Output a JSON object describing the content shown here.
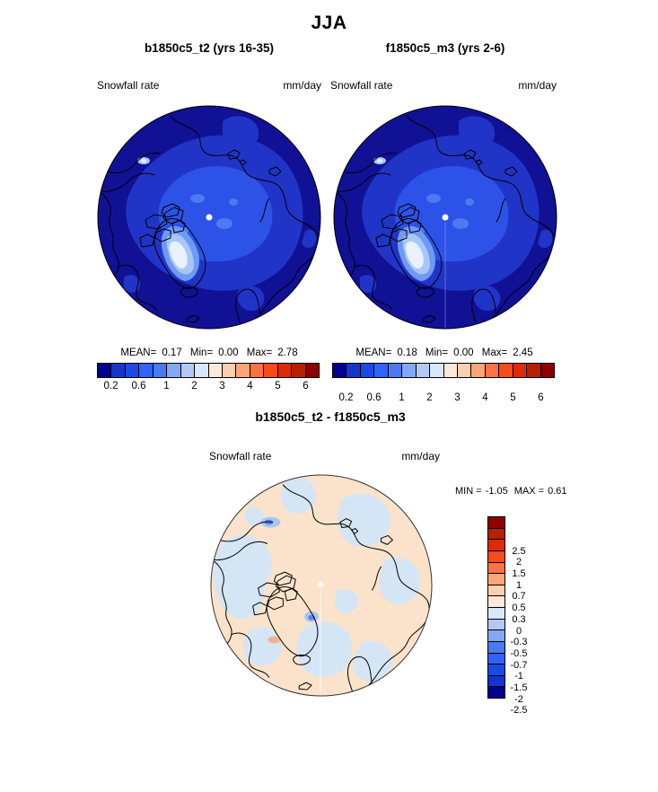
{
  "figure": {
    "title": "JJA"
  },
  "panels": {
    "left": {
      "title": "b1850c5_t2 (yrs 16-35)",
      "field_label": "Snowfall rate",
      "units": "mm/day",
      "stats": {
        "mean_label": "MEAN=",
        "mean": "0.17",
        "min_label": "Min=",
        "min": "0.00",
        "max_label": "Max=",
        "max": "2.78"
      }
    },
    "right": {
      "title": "f1850c5_m3 (yrs 2-6)",
      "field_label": "Snowfall rate",
      "units": "mm/day",
      "stats": {
        "mean_label": "MEAN=",
        "mean": "0.18",
        "min_label": "Min=",
        "min": "0.00",
        "max_label": "Max=",
        "max": "2.45"
      }
    },
    "diff": {
      "title": "b1850c5_t2 - f1850c5_m3",
      "field_label": "Snowfall rate",
      "units": "mm/day",
      "stats": {
        "min_label": "MIN =",
        "min": "-1.05",
        "max_label": "MAX =",
        "max": "0.61"
      }
    }
  },
  "colorbar_top": {
    "orientation": "horizontal",
    "tick_labels": [
      "0.2",
      "0.6",
      "1",
      "2",
      "3",
      "4",
      "5",
      "6"
    ],
    "levels": [
      0.2,
      0.4,
      0.6,
      0.8,
      1,
      1.5,
      2,
      2.5,
      3,
      3.5,
      4,
      4.5,
      5,
      5.5,
      6
    ],
    "colors": [
      "#000090",
      "#1535cc",
      "#1d48e8",
      "#2f63fa",
      "#4b79f2",
      "#85a8f5",
      "#b3c9f5",
      "#d9e7fa",
      "#fde9d9",
      "#fccfb0",
      "#fba579",
      "#fb7342",
      "#f94b1a",
      "#df2a08",
      "#b42000",
      "#8c0000"
    ]
  },
  "colorbar_diff": {
    "orientation": "vertical",
    "tick_labels_top_to_bottom": [
      "2.5",
      "2",
      "1.5",
      "1",
      "0.7",
      "0.5",
      "0.3",
      "0",
      "-0.3",
      "-0.5",
      "-0.7",
      "-1",
      "-1.5",
      "-2",
      "-2.5"
    ],
    "levels": [
      -2.5,
      -2,
      -1.5,
      -1,
      -0.7,
      -0.5,
      -0.3,
      0,
      0.3,
      0.5,
      0.7,
      1,
      1.5,
      2,
      2.5
    ],
    "colors_top_to_bottom": [
      "#8c0000",
      "#b42000",
      "#df2a08",
      "#f94b1a",
      "#fb7342",
      "#fba579",
      "#fccfb0",
      "#fde9d9",
      "#d9e7fa",
      "#b3c9f5",
      "#85a8f5",
      "#4b79f2",
      "#2f63fa",
      "#1d48e8",
      "#1535cc",
      "#000090"
    ]
  },
  "map_colors": {
    "background": "#111195",
    "contour_mid": "#2134c8",
    "contour_high": "#2d52e8",
    "contour_higher": "#4d79f2",
    "greenland_1": "#6f9af4",
    "greenland_2": "#a9c6f8",
    "greenland_core": "#e9f1fd",
    "pole_dot": "#ffffff",
    "coastline": "#000000",
    "diff_base": "#fae3ca",
    "diff_neg_light": "#d4e5f6",
    "diff_neg_mid": "#a9c6f6",
    "diff_neg_strong": "#5b86ee",
    "diff_pos_mid": "#f6b18f"
  },
  "chart_data": [
    {
      "type": "heatmap",
      "projection": "north-polar-stereographic",
      "season": "JJA",
      "title": "b1850c5_t2 (yrs 16-35)",
      "variable": "Snowfall rate",
      "units": "mm/day",
      "stats": {
        "mean": 0.17,
        "min": 0.0,
        "max": 2.78
      },
      "contour_levels": [
        0.2,
        0.4,
        0.6,
        0.8,
        1,
        1.5,
        2,
        2.5,
        3,
        3.5,
        4,
        4.5,
        5,
        5.5,
        6
      ],
      "palette": [
        "#000090",
        "#1535cc",
        "#1d48e8",
        "#2f63fa",
        "#4b79f2",
        "#85a8f5",
        "#b3c9f5",
        "#d9e7fa",
        "#fde9d9",
        "#fccfb0",
        "#fba579",
        "#fb7342",
        "#f94b1a",
        "#df2a08",
        "#b42000",
        "#8c0000"
      ],
      "notable_features": "Values below 0.2 mm/day over most of the domain; 0.4-0.8 mm/day over the central Arctic Ocean; local maximum up to 2.78 mm/day over the Greenland ice sheet"
    },
    {
      "type": "heatmap",
      "projection": "north-polar-stereographic",
      "season": "JJA",
      "title": "f1850c5_m3 (yrs 2-6)",
      "variable": "Snowfall rate",
      "units": "mm/day",
      "stats": {
        "mean": 0.18,
        "min": 0.0,
        "max": 2.45
      },
      "contour_levels": [
        0.2,
        0.4,
        0.6,
        0.8,
        1,
        1.5,
        2,
        2.5,
        3,
        3.5,
        4,
        4.5,
        5,
        5.5,
        6
      ],
      "palette": [
        "#000090",
        "#1535cc",
        "#1d48e8",
        "#2f63fa",
        "#4b79f2",
        "#85a8f5",
        "#b3c9f5",
        "#d9e7fa",
        "#fde9d9",
        "#fccfb0",
        "#fba579",
        "#fb7342",
        "#f94b1a",
        "#df2a08",
        "#b42000",
        "#8c0000"
      ],
      "notable_features": "Pattern nearly identical to b1850c5_t2 with light snowfall over central Arctic and maximum over Greenland"
    },
    {
      "type": "heatmap",
      "projection": "north-polar-stereographic",
      "season": "JJA",
      "title": "b1850c5_t2 - f1850c5_m3",
      "variable": "Snowfall rate difference",
      "units": "mm/day",
      "stats": {
        "min": -1.05,
        "max": 0.61
      },
      "contour_levels": [
        -2.5,
        -2,
        -1.5,
        -1,
        -0.7,
        -0.5,
        -0.3,
        0,
        0.3,
        0.5,
        0.7,
        1,
        1.5,
        2,
        2.5
      ],
      "palette_top_to_bottom": [
        "#8c0000",
        "#b42000",
        "#df2a08",
        "#f94b1a",
        "#fb7342",
        "#fba579",
        "#fccfb0",
        "#fde9d9",
        "#d9e7fa",
        "#b3c9f5",
        "#85a8f5",
        "#4b79f2",
        "#2f63fa",
        "#1d48e8",
        "#1535cc",
        "#000090"
      ],
      "notable_features": "Mostly weak differences between -0.3 and +0.3 mm/day; small negative spots near the Siberian coast and east Greenland"
    }
  ]
}
